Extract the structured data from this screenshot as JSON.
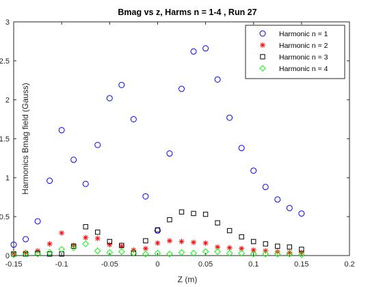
{
  "chart_data": {
    "type": "scatter",
    "title": "Bmag vs z, Harms n = 1-4 , Run 27",
    "xlabel": "Z (m)",
    "ylabel": "Harmonics Bmag field (Gauss)",
    "xlim": [
      -0.15,
      0.2
    ],
    "ylim": [
      0,
      3
    ],
    "xticks": [
      -0.15,
      -0.1,
      -0.05,
      0,
      0.05,
      0.1,
      0.15,
      0.2
    ],
    "xtick_labels": [
      "-0.15",
      "-0.1",
      "-0.05",
      "0",
      "0.05",
      "0.1",
      "0.15",
      "0.2"
    ],
    "yticks": [
      0,
      0.5,
      1,
      1.5,
      2,
      2.5,
      3
    ],
    "ytick_labels": [
      "0",
      "0.5",
      "1",
      "1.5",
      "2",
      "2.5",
      "3"
    ],
    "grid": false,
    "legend_position": "top-right",
    "x": [
      -0.15,
      -0.1375,
      -0.125,
      -0.1125,
      -0.1,
      -0.0875,
      -0.075,
      -0.0625,
      -0.05,
      -0.0375,
      -0.025,
      -0.0125,
      0,
      0.0125,
      0.025,
      0.0375,
      0.05,
      0.0625,
      0.075,
      0.0875,
      0.1,
      0.1125,
      0.125,
      0.1375,
      0.15
    ],
    "series": [
      {
        "name": "Harmonic n = 1",
        "marker": "circle",
        "color": "#0000FF",
        "values": [
          0.14,
          0.21,
          0.44,
          0.96,
          1.61,
          1.23,
          0.92,
          1.42,
          2.02,
          2.19,
          1.75,
          0.76,
          0.32,
          1.31,
          2.14,
          2.62,
          2.66,
          2.26,
          1.77,
          1.38,
          1.09,
          0.88,
          0.72,
          0.61,
          0.54
        ]
      },
      {
        "name": "Harmonic n = 2",
        "marker": "asterisk",
        "color": "#FF0000",
        "values": [
          0.03,
          0.04,
          0.06,
          0.15,
          0.29,
          0.13,
          0.23,
          0.22,
          0.14,
          0.12,
          0.07,
          0.09,
          0.16,
          0.19,
          0.18,
          0.17,
          0.16,
          0.11,
          0.1,
          0.09,
          0.07,
          0.06,
          0.05,
          0.04,
          0.04
        ]
      },
      {
        "name": "Harmonic n = 3",
        "marker": "square",
        "color": "#000000",
        "values": [
          0.02,
          0.02,
          0.03,
          0.02,
          0.02,
          0.12,
          0.37,
          0.3,
          0.18,
          0.13,
          0.03,
          0.19,
          0.33,
          0.46,
          0.56,
          0.54,
          0.53,
          0.42,
          0.32,
          0.24,
          0.18,
          0.15,
          0.12,
          0.11,
          0.08
        ]
      },
      {
        "name": "Harmonic n = 4",
        "marker": "diamond",
        "color": "#00FF00",
        "values": [
          0.01,
          0.02,
          0.02,
          0.04,
          0.08,
          0.1,
          0.15,
          0.06,
          0.04,
          0.05,
          0.03,
          0.02,
          0.03,
          0.02,
          0.04,
          0.03,
          0.05,
          0.05,
          0.03,
          0.03,
          0.02,
          0.02,
          0.02,
          0.02,
          0.01
        ]
      }
    ]
  }
}
